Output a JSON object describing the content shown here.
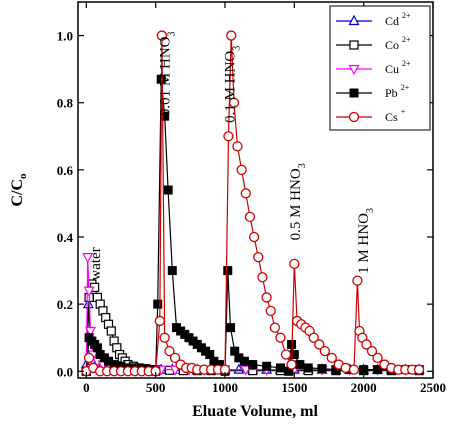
{
  "chart_data": {
    "type": "line",
    "xlabel": "Eluate Volume, ml",
    "ylabel_main": "C/C",
    "ylabel_sub": "o",
    "xlim": [
      -60,
      2500
    ],
    "ylim": [
      -0.02,
      1.1
    ],
    "xticks": [
      0,
      500,
      1000,
      1500,
      2000,
      2500
    ],
    "yticks": [
      0.0,
      0.2,
      0.4,
      0.6,
      0.8,
      1.0
    ],
    "ytick_labels": [
      "0.0",
      "0.2",
      "0.4",
      "0.6",
      "0.8",
      "1.0"
    ],
    "legend_position": "top-right",
    "annotations": [
      {
        "text": "water",
        "x": 100,
        "y": 0.27
      },
      {
        "text": "0.01 M HNO",
        "sub": "3",
        "x": 600,
        "y": 0.76
      },
      {
        "text": "0.1 M HNO",
        "sub": "3",
        "x": 1070,
        "y": 0.74
      },
      {
        "text": "0.5 M HNO",
        "sub": "3",
        "x": 1540,
        "y": 0.39
      },
      {
        "text": "1 M HNO",
        "sub": "3",
        "x": 2030,
        "y": 0.29
      }
    ],
    "series": [
      {
        "name": "Cd",
        "charge": "2+",
        "color": "#0000cc",
        "marker": "triangle-up",
        "x": [
          0,
          15,
          30,
          50,
          80,
          120,
          170,
          230,
          300,
          380,
          460,
          540,
          620,
          700,
          800,
          900,
          1000,
          1100,
          1200,
          1300,
          1400,
          1500,
          1600,
          1700,
          1800,
          1900,
          2000,
          2100,
          2200,
          2300,
          2400
        ],
        "y": [
          0.02,
          0.2,
          0.1,
          0.05,
          0.03,
          0.02,
          0.015,
          0.01,
          0.008,
          0.006,
          0.005,
          0.005,
          0.005,
          0.005,
          0.005,
          0.005,
          0.005,
          0.005,
          0.005,
          0.005,
          0.005,
          0.005,
          0.005,
          0.005,
          0.005,
          0.005,
          0.005,
          0.005,
          0.005,
          0.005,
          0.005
        ]
      },
      {
        "name": "Co",
        "charge": "2+",
        "color": "#000000",
        "marker": "square-open",
        "x": [
          0,
          20,
          40,
          60,
          80,
          100,
          120,
          140,
          160,
          180,
          200,
          220,
          240,
          260,
          280,
          300,
          340,
          380,
          420,
          500,
          600,
          700,
          800,
          900,
          1000,
          1200,
          1400,
          1600,
          1800,
          2000,
          2200,
          2400
        ],
        "y": [
          0.0,
          0.22,
          0.26,
          0.25,
          0.22,
          0.2,
          0.18,
          0.16,
          0.14,
          0.12,
          0.09,
          0.07,
          0.05,
          0.04,
          0.03,
          0.02,
          0.015,
          0.01,
          0.008,
          0.005,
          0.003,
          0.002,
          0.002,
          0.002,
          0.002,
          0.002,
          0.002,
          0.002,
          0.002,
          0.002,
          0.002,
          0.002
        ]
      },
      {
        "name": "Cu",
        "charge": "2+",
        "color": "#ff00ff",
        "marker": "triangle-down",
        "x": [
          0,
          10,
          20,
          30,
          50,
          80,
          120,
          170,
          230,
          300,
          380,
          460,
          540,
          640,
          740,
          850,
          1000,
          1150,
          1300,
          1500,
          1700,
          1900,
          2100,
          2300,
          2400
        ],
        "y": [
          0.0,
          0.34,
          0.24,
          0.12,
          0.05,
          0.03,
          0.02,
          0.015,
          0.01,
          0.008,
          0.006,
          0.005,
          0.005,
          0.005,
          0.005,
          0.005,
          0.005,
          0.005,
          0.005,
          0.005,
          0.005,
          0.005,
          0.005,
          0.005,
          0.005
        ]
      },
      {
        "name": "Pb",
        "charge": "2+",
        "color": "#000000",
        "marker": "square-filled",
        "x": [
          0,
          20,
          40,
          60,
          80,
          100,
          130,
          160,
          200,
          250,
          300,
          350,
          400,
          450,
          480,
          500,
          515,
          540,
          565,
          590,
          620,
          650,
          680,
          710,
          740,
          770,
          800,
          830,
          860,
          890,
          920,
          960,
          1000,
          1020,
          1040,
          1070,
          1100,
          1140,
          1200,
          1300,
          1400,
          1460,
          1480,
          1500,
          1540,
          1600,
          1700,
          1800,
          1900,
          2000,
          2100,
          2200,
          2300,
          2400
        ],
        "y": [
          0.0,
          0.1,
          0.09,
          0.08,
          0.07,
          0.05,
          0.04,
          0.03,
          0.02,
          0.015,
          0.01,
          0.01,
          0.008,
          0.005,
          0.005,
          0.0,
          0.2,
          0.87,
          0.76,
          0.54,
          0.3,
          0.13,
          0.12,
          0.11,
          0.1,
          0.09,
          0.08,
          0.07,
          0.06,
          0.05,
          0.03,
          0.02,
          0.0,
          0.3,
          0.13,
          0.06,
          0.04,
          0.03,
          0.02,
          0.015,
          0.01,
          0.0,
          0.08,
          0.05,
          0.02,
          0.01,
          0.008,
          0.005,
          0.005,
          0.005,
          0.005,
          0.005,
          0.005,
          0.005
        ]
      },
      {
        "name": "Cs",
        "charge": "+",
        "color": "#cc0000",
        "marker": "circle-open",
        "x": [
          0,
          20,
          50,
          100,
          150,
          200,
          250,
          300,
          350,
          400,
          450,
          500,
          530,
          545,
          565,
          600,
          640,
          680,
          720,
          760,
          800,
          850,
          900,
          950,
          1000,
          1025,
          1045,
          1065,
          1090,
          1120,
          1150,
          1180,
          1210,
          1240,
          1270,
          1300,
          1330,
          1360,
          1400,
          1440,
          1480,
          1500,
          1520,
          1550,
          1580,
          1610,
          1640,
          1680,
          1720,
          1770,
          1820,
          1870,
          1930,
          1955,
          1970,
          1990,
          2020,
          2060,
          2100,
          2150,
          2200,
          2250,
          2300,
          2350,
          2400
        ],
        "y": [
          0.0,
          0.04,
          0.01,
          0.0,
          0.0,
          0.0,
          0.0,
          0.0,
          0.0,
          0.0,
          0.0,
          0.0,
          0.15,
          1.0,
          0.1,
          0.06,
          0.04,
          0.02,
          0.01,
          0.01,
          0.005,
          0.005,
          0.005,
          0.005,
          0.005,
          0.7,
          1.0,
          0.8,
          0.67,
          0.6,
          0.53,
          0.46,
          0.4,
          0.34,
          0.28,
          0.22,
          0.18,
          0.13,
          0.1,
          0.05,
          0.02,
          0.32,
          0.15,
          0.14,
          0.13,
          0.12,
          0.1,
          0.08,
          0.06,
          0.04,
          0.02,
          0.01,
          0.005,
          0.27,
          0.12,
          0.1,
          0.08,
          0.06,
          0.04,
          0.02,
          0.01,
          0.005,
          0.005,
          0.005,
          0.005
        ]
      }
    ]
  }
}
